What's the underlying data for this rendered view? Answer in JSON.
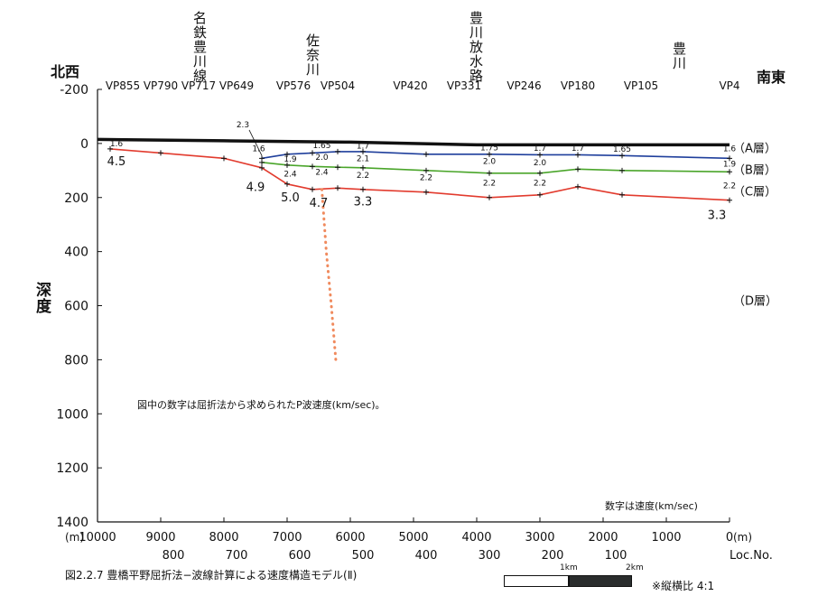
{
  "chart_data": {
    "type": "line",
    "title": "",
    "xlabel": "",
    "ylabel": "深度",
    "x_unit": "(m)",
    "xlim": [
      10000,
      0
    ],
    "ylim": [
      -200,
      1400
    ],
    "x_ticks": [
      10000,
      9000,
      8000,
      7000,
      6000,
      5000,
      4000,
      3000,
      2000,
      1000,
      0
    ],
    "y_ticks": [
      -200,
      0,
      200,
      400,
      600,
      800,
      1000,
      1200,
      1400
    ],
    "loc_ticks": [
      {
        "x": 8800,
        "label": "800"
      },
      {
        "x": 7800,
        "label": "700"
      },
      {
        "x": 6800,
        "label": "600"
      },
      {
        "x": 5800,
        "label": "500"
      },
      {
        "x": 4800,
        "label": "400"
      },
      {
        "x": 3800,
        "label": "300"
      },
      {
        "x": 2800,
        "label": "200"
      },
      {
        "x": 1800,
        "label": "100"
      },
      {
        "x": 0,
        "label": "Loc.No."
      }
    ],
    "vp_labels": [
      {
        "x": 9600,
        "label": "VP855"
      },
      {
        "x": 9000,
        "label": "VP790"
      },
      {
        "x": 8400,
        "label": "VP717"
      },
      {
        "x": 7800,
        "label": "VP649"
      },
      {
        "x": 6900,
        "label": "VP576"
      },
      {
        "x": 6200,
        "label": "VP504"
      },
      {
        "x": 5050,
        "label": "VP420"
      },
      {
        "x": 4200,
        "label": "VP331"
      },
      {
        "x": 3250,
        "label": "VP246"
      },
      {
        "x": 2400,
        "label": "VP180"
      },
      {
        "x": 1400,
        "label": "VP105"
      },
      {
        "x": 0,
        "label": "VP4"
      }
    ],
    "landmarks": [
      {
        "x": 8000,
        "label": "名鉄豊川線"
      },
      {
        "x": 6450,
        "label": "佐奈川"
      },
      {
        "x": 3850,
        "label": "豊川放水路"
      },
      {
        "x": 800,
        "label": "豊川"
      }
    ],
    "direction_left": "北西",
    "direction_right": "南東",
    "series": [
      {
        "name": "A層",
        "color": "#1f3f9c",
        "x": [
          7400,
          7000,
          6600,
          6200,
          5800,
          4800,
          3800,
          3000,
          2400,
          1700,
          0
        ],
        "y": [
          55,
          40,
          35,
          30,
          30,
          40,
          40,
          42,
          42,
          45,
          55
        ]
      },
      {
        "name": "B層",
        "color": "#4aa52a",
        "x": [
          7400,
          7000,
          6600,
          6200,
          5800,
          4800,
          3800,
          3000,
          2400,
          1700,
          0
        ],
        "y": [
          70,
          80,
          85,
          88,
          90,
          100,
          110,
          110,
          95,
          100,
          105
        ]
      },
      {
        "name": "C層",
        "color": "#e23b2e",
        "x": [
          9800,
          9000,
          8000,
          7400,
          7000,
          6600,
          6200,
          5800,
          4800,
          3800,
          3000,
          2400,
          1700,
          0
        ],
        "y": [
          20,
          35,
          55,
          90,
          150,
          170,
          165,
          170,
          180,
          200,
          190,
          160,
          190,
          210
        ]
      }
    ],
    "ground_surface": {
      "name": "",
      "color": "#111111",
      "x": [
        10000,
        8000,
        6000,
        4000,
        2000,
        0
      ],
      "y": [
        -15,
        -10,
        -5,
        5,
        5,
        5
      ]
    },
    "fault": {
      "color": "#f08a5d",
      "x": [
        6450,
        6380,
        6300,
        6230
      ],
      "y": [
        170,
        400,
        600,
        800
      ]
    },
    "velocity_labels": [
      {
        "x": 9700,
        "y": 10,
        "text": "1.6",
        "size": 9
      },
      {
        "x": 9700,
        "y": 80,
        "text": "4.5",
        "size": 13
      },
      {
        "x": 7700,
        "y": -60,
        "text": "2.3",
        "size": 9
      },
      {
        "x": 7450,
        "y": 28,
        "text": "1.6",
        "size": 9
      },
      {
        "x": 7500,
        "y": 175,
        "text": "4.9",
        "size": 13
      },
      {
        "x": 6950,
        "y": 68,
        "text": "1.9",
        "size": 9
      },
      {
        "x": 6950,
        "y": 122,
        "text": "2.4",
        "size": 9
      },
      {
        "x": 6950,
        "y": 215,
        "text": "5.0",
        "size": 13
      },
      {
        "x": 6450,
        "y": 17,
        "text": "1.65",
        "size": 9
      },
      {
        "x": 6450,
        "y": 60,
        "text": "2.0",
        "size": 9
      },
      {
        "x": 6450,
        "y": 115,
        "text": "2.4",
        "size": 9
      },
      {
        "x": 6500,
        "y": 235,
        "text": "4.7",
        "size": 13
      },
      {
        "x": 5800,
        "y": 18,
        "text": "1.7",
        "size": 9
      },
      {
        "x": 5800,
        "y": 65,
        "text": "2.1",
        "size": 9
      },
      {
        "x": 5800,
        "y": 128,
        "text": "2.2",
        "size": 9
      },
      {
        "x": 5800,
        "y": 230,
        "text": "3.3",
        "size": 13
      },
      {
        "x": 4800,
        "y": 135,
        "text": "2.2",
        "size": 9
      },
      {
        "x": 3800,
        "y": 25,
        "text": "1.75",
        "size": 9
      },
      {
        "x": 3800,
        "y": 75,
        "text": "2.0",
        "size": 9
      },
      {
        "x": 3800,
        "y": 155,
        "text": "2.2",
        "size": 9
      },
      {
        "x": 3000,
        "y": 27,
        "text": "1.7",
        "size": 9
      },
      {
        "x": 3000,
        "y": 80,
        "text": "2.0",
        "size": 9
      },
      {
        "x": 3000,
        "y": 155,
        "text": "2.2",
        "size": 9
      },
      {
        "x": 2400,
        "y": 27,
        "text": "1.7",
        "size": 9
      },
      {
        "x": 1700,
        "y": 30,
        "text": "1.65",
        "size": 9
      },
      {
        "x": 0,
        "y": 28,
        "text": "1.6",
        "size": 9
      },
      {
        "x": 0,
        "y": 85,
        "text": "1.9",
        "size": 9
      },
      {
        "x": 0,
        "y": 165,
        "text": "2.2",
        "size": 9
      },
      {
        "x": 200,
        "y": 280,
        "text": "3.3",
        "size": 13
      }
    ],
    "layer_labels": [
      {
        "y": 15,
        "text": "（A層）"
      },
      {
        "y": 95,
        "text": "（B層）"
      },
      {
        "y": 175,
        "text": "（C層）"
      },
      {
        "y": 580,
        "text": "（D層）"
      }
    ],
    "annotation": "図中の数字は屈折法から求められたP波速度(km/sec)。",
    "note_bottom_right": "数字は速度(km/sec)"
  },
  "caption": "図2.2.7  豊橋平野屈折法−波線計算による速度構造モデル(Ⅱ)",
  "scale": {
    "label_1": "1km",
    "label_2": "2km"
  },
  "ratio": "※縦横比  4:1"
}
